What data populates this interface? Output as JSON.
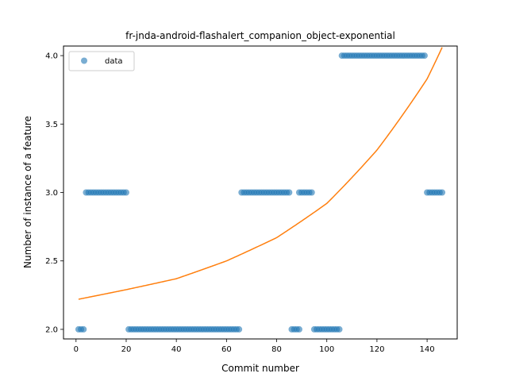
{
  "chart_data": {
    "type": "scatter",
    "title": "fr-jnda-android-flashalert_companion_object-exponential",
    "xlabel": "Commit number",
    "ylabel": "Number of instance of a feature",
    "xlim": [
      -5,
      152
    ],
    "ylim": [
      1.93,
      4.07
    ],
    "xticks": [
      0,
      20,
      40,
      60,
      80,
      100,
      120,
      140
    ],
    "yticks": [
      2.0,
      2.5,
      3.0,
      3.5,
      4.0
    ],
    "ytick_labels": [
      "2.0",
      "2.5",
      "3.0",
      "3.5",
      "4.0"
    ],
    "grid": false,
    "legend": {
      "position": "top-left",
      "entries": [
        "data"
      ]
    },
    "colors": {
      "data": "#1f77b4",
      "fit": "#ff7f0e"
    },
    "series": [
      {
        "name": "data",
        "kind": "scatter",
        "runs": [
          {
            "x_from": 1,
            "x_to": 3,
            "y": 2
          },
          {
            "x_from": 4,
            "x_to": 20,
            "y": 3
          },
          {
            "x_from": 21,
            "x_to": 65,
            "y": 2
          },
          {
            "x_from": 66,
            "x_to": 85,
            "y": 3
          },
          {
            "x_from": 86,
            "x_to": 89,
            "y": 2
          },
          {
            "x_from": 89,
            "x_to": 94,
            "y": 3
          },
          {
            "x_from": 95,
            "x_to": 105,
            "y": 2
          },
          {
            "x_from": 106,
            "x_to": 139,
            "y": 4
          },
          {
            "x_from": 140,
            "x_to": 146,
            "y": 3
          }
        ]
      },
      {
        "kind": "line",
        "x": [
          1,
          20,
          40,
          60,
          80,
          100,
          120,
          140,
          146
        ],
        "y": [
          2.22,
          2.29,
          2.37,
          2.5,
          2.67,
          2.92,
          3.31,
          3.83,
          4.06
        ]
      }
    ]
  }
}
